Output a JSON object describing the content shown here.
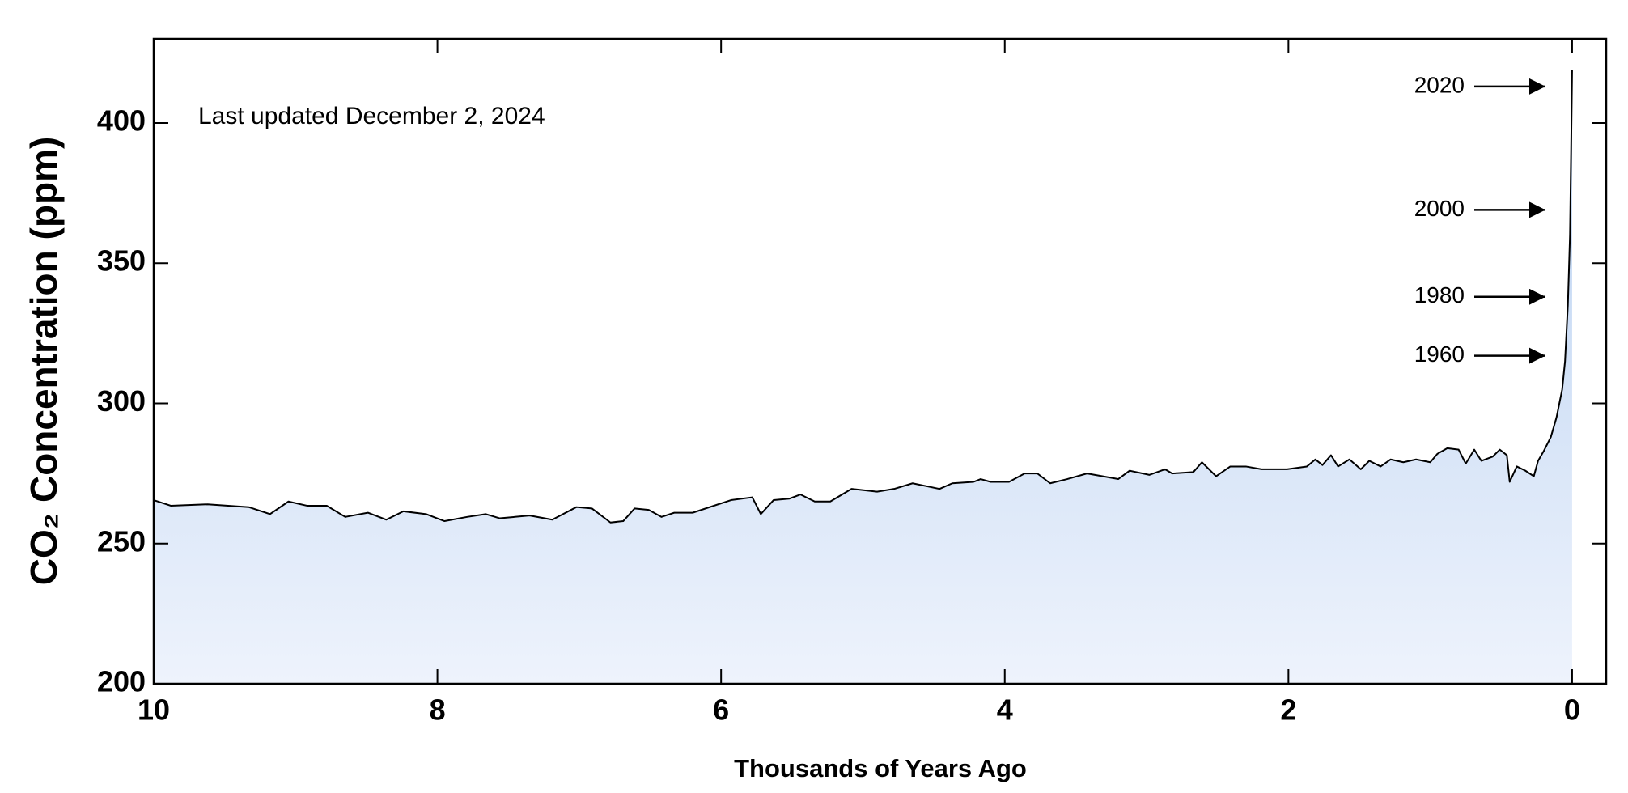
{
  "chart_data": {
    "type": "area",
    "x_label": "Thousands of Years Ago",
    "y_label": "CO₂ Concentration (ppm)",
    "note": "Last updated December 2, 2024",
    "line_color": "#000000",
    "fill_top_color": "#b7d0f1",
    "fill_bottom_color": "#eef3fc",
    "xlim": [
      10,
      -0.24
    ],
    "xticks": [
      10,
      8,
      6,
      4,
      2,
      0
    ],
    "ylim": [
      200,
      430
    ],
    "yticks": [
      200,
      250,
      300,
      350,
      400
    ],
    "x": [
      10,
      9.88,
      9.62,
      9.33,
      9.18,
      9.05,
      8.92,
      8.78,
      8.65,
      8.49,
      8.36,
      8.24,
      8.08,
      7.95,
      7.79,
      7.66,
      7.56,
      7.35,
      7.19,
      7.02,
      6.91,
      6.78,
      6.69,
      6.61,
      6.51,
      6.42,
      6.33,
      6.2,
      5.93,
      5.78,
      5.72,
      5.63,
      5.52,
      5.44,
      5.34,
      5.23,
      5.08,
      4.9,
      4.78,
      4.65,
      4.46,
      4.37,
      4.22,
      4.17,
      4.1,
      3.97,
      3.86,
      3.77,
      3.68,
      3.56,
      3.42,
      3.2,
      3.12,
      2.98,
      2.87,
      2.82,
      2.67,
      2.61,
      2.51,
      2.41,
      2.3,
      2.19,
      2.01,
      1.87,
      1.81,
      1.76,
      1.7,
      1.65,
      1.57,
      1.49,
      1.43,
      1.35,
      1.28,
      1.19,
      1.1,
      1.0,
      0.95,
      0.88,
      0.8,
      0.75,
      0.69,
      0.64,
      0.56,
      0.51,
      0.46,
      0.44,
      0.39,
      0.33,
      0.27,
      0.24,
      0.2,
      0.15,
      0.11,
      0.07,
      0.05,
      0.03,
      0.015,
      0.007,
      0
    ],
    "values": [
      265.5,
      263.5,
      264,
      263,
      260.5,
      265,
      263.5,
      263.5,
      259.5,
      261,
      258.5,
      261.5,
      260.5,
      258,
      259.5,
      260.5,
      259,
      260,
      258.5,
      263,
      262.5,
      257.5,
      258,
      262.5,
      262,
      259.5,
      261,
      261,
      265.5,
      266.5,
      260.5,
      265.5,
      266,
      267.5,
      265,
      265,
      269.5,
      268.5,
      269.5,
      271.5,
      269.5,
      271.5,
      272,
      273,
      272,
      272,
      275,
      275,
      271.5,
      273,
      275,
      273,
      276,
      274.5,
      276.5,
      275,
      275.5,
      279,
      274,
      277.5,
      277.5,
      276.5,
      276.5,
      277.5,
      280,
      278,
      281.5,
      277.5,
      280,
      276.5,
      279.5,
      277.5,
      280,
      279,
      280,
      279,
      282,
      284,
      283.5,
      278.5,
      283.5,
      279.5,
      281,
      283.5,
      281.5,
      272,
      277.5,
      276,
      274,
      279.5,
      283,
      288,
      295,
      305,
      315,
      335,
      360,
      390,
      419
    ],
    "annotations": [
      {
        "label": "2020",
        "y": 413
      },
      {
        "label": "2000",
        "y": 369
      },
      {
        "label": "1980",
        "y": 338
      },
      {
        "label": "1960",
        "y": 317
      }
    ]
  }
}
